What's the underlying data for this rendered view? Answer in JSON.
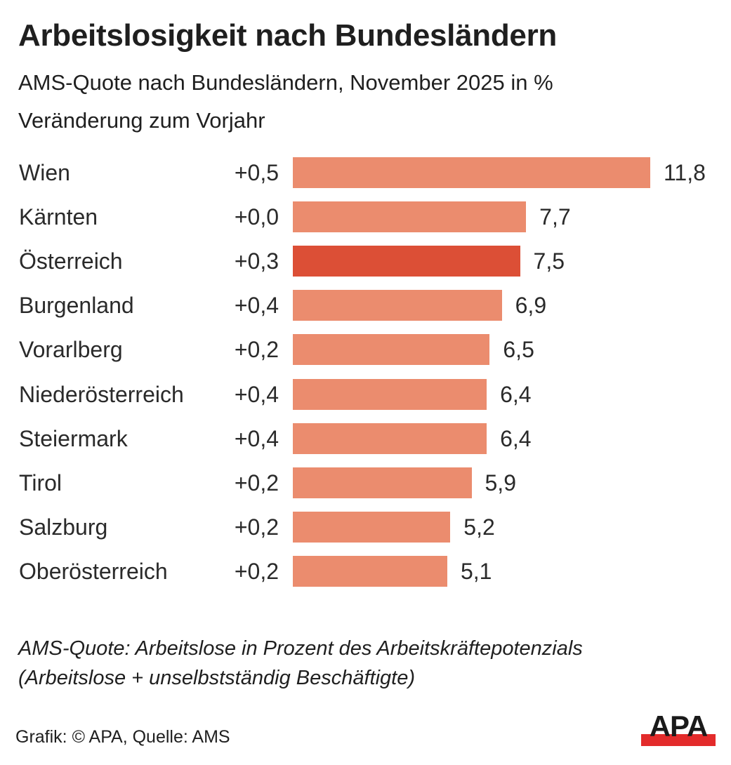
{
  "header": {
    "title": "Arbeitslosigkeit nach Bundesländern",
    "subtitle": "AMS-Quote nach Bundesländern, November 2025 in %",
    "subtitle2": "Veränderung zum Vorjahr"
  },
  "colors": {
    "bar": "#eb8c6e",
    "highlight": "#dc4f36",
    "logo_red": "#e32b2b",
    "text": "#2a2a2a"
  },
  "chart_data": {
    "type": "bar",
    "orientation": "horizontal",
    "title": "Arbeitslosigkeit nach Bundesländern",
    "subtitle": "AMS-Quote nach Bundesländern, November 2025 in %",
    "xlabel": "",
    "ylabel": "",
    "xlim": [
      0,
      11.8
    ],
    "grid": false,
    "legend": "none",
    "categories": [
      "Wien",
      "Kärnten",
      "Österreich",
      "Burgenland",
      "Vorarlberg",
      "Niederösterreich",
      "Steiermark",
      "Tirol",
      "Salzburg",
      "Oberösterreich"
    ],
    "series": [
      {
        "name": "AMS-Quote November 2025 (%)",
        "values": [
          11.8,
          7.7,
          7.5,
          6.9,
          6.5,
          6.4,
          6.4,
          5.9,
          5.2,
          5.1
        ],
        "labels": [
          "11,8",
          "7,7",
          "7,5",
          "6,9",
          "6,5",
          "6,4",
          "6,4",
          "5,9",
          "5,2",
          "5,1"
        ]
      },
      {
        "name": "Veränderung zum Vorjahr",
        "values": [
          0.5,
          0.0,
          0.3,
          0.4,
          0.2,
          0.4,
          0.4,
          0.2,
          0.2,
          0.2
        ],
        "labels": [
          "+0,5",
          "+0,0",
          "+0,3",
          "+0,4",
          "+0,2",
          "+0,4",
          "+0,4",
          "+0,2",
          "+0,2",
          "+0,2"
        ]
      }
    ],
    "highlight_category": "Österreich"
  },
  "footer": {
    "note_line1": "AMS-Quote: Arbeitslose in Prozent des Arbeitskräftepotenzials",
    "note_line2": "(Arbeitslose + unselbstständig Beschäftigte)",
    "source": "Grafik: © APA, Quelle: AMS",
    "logo_text": "APA"
  }
}
